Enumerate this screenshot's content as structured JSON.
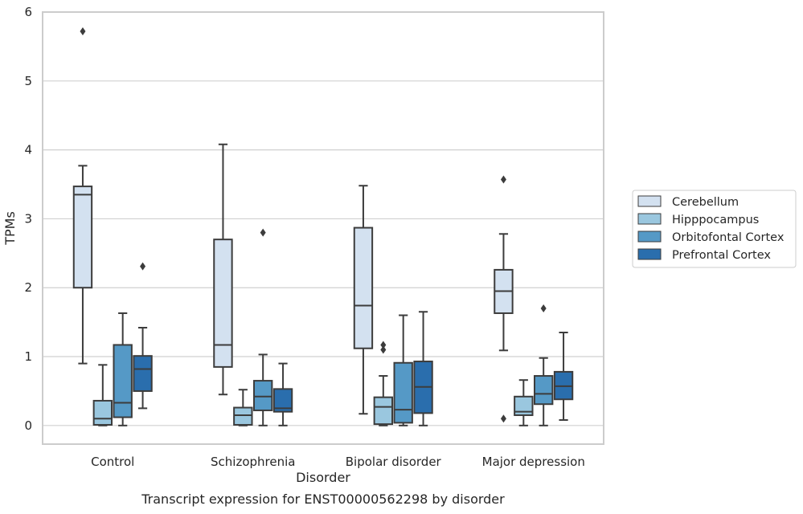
{
  "chart_data": {
    "type": "box",
    "xlabel": "Disorder",
    "ylabel": "TPMs",
    "caption": "Transcript expression for ENST00000562298 by disorder",
    "ylim": [
      -0.27,
      6.0
    ],
    "yticks": [
      0,
      1,
      2,
      3,
      4,
      5,
      6
    ],
    "grid": true,
    "legend_position": "center-right",
    "categories": [
      "Control",
      "Schizophrenia",
      "Bipolar disorder",
      "Major depression"
    ],
    "series": [
      {
        "name": "Cerebellum",
        "color": "#d3e1f0",
        "boxes": [
          {
            "whisker_low": 0.9,
            "q1": 2.0,
            "median": 3.35,
            "q3": 3.47,
            "whisker_high": 3.77,
            "outliers": [
              5.72
            ]
          },
          {
            "whisker_low": 0.45,
            "q1": 0.85,
            "median": 1.17,
            "q3": 2.7,
            "whisker_high": 4.08,
            "outliers": []
          },
          {
            "whisker_low": 0.17,
            "q1": 1.12,
            "median": 1.74,
            "q3": 2.87,
            "whisker_high": 3.48,
            "outliers": []
          },
          {
            "whisker_low": 1.09,
            "q1": 1.63,
            "median": 1.95,
            "q3": 2.26,
            "whisker_high": 2.78,
            "outliers": [
              0.1,
              3.57
            ]
          }
        ]
      },
      {
        "name": "Hipppocampus",
        "color": "#9ac7df",
        "boxes": [
          {
            "whisker_low": 0.0,
            "q1": 0.01,
            "median": 0.1,
            "q3": 0.36,
            "whisker_high": 0.88,
            "outliers": []
          },
          {
            "whisker_low": 0.0,
            "q1": 0.01,
            "median": 0.15,
            "q3": 0.26,
            "whisker_high": 0.52,
            "outliers": []
          },
          {
            "whisker_low": 0.0,
            "q1": 0.02,
            "median": 0.27,
            "q3": 0.41,
            "whisker_high": 0.72,
            "outliers": [
              1.1,
              1.17
            ]
          },
          {
            "whisker_low": 0.0,
            "q1": 0.15,
            "median": 0.2,
            "q3": 0.42,
            "whisker_high": 0.66,
            "outliers": []
          }
        ]
      },
      {
        "name": "Orbitofontal Cortex",
        "color": "#5599c6",
        "boxes": [
          {
            "whisker_low": 0.0,
            "q1": 0.12,
            "median": 0.33,
            "q3": 1.17,
            "whisker_high": 1.63,
            "outliers": []
          },
          {
            "whisker_low": 0.0,
            "q1": 0.22,
            "median": 0.42,
            "q3": 0.65,
            "whisker_high": 1.03,
            "outliers": [
              2.8
            ]
          },
          {
            "whisker_low": 0.0,
            "q1": 0.04,
            "median": 0.23,
            "q3": 0.91,
            "whisker_high": 1.6,
            "outliers": []
          },
          {
            "whisker_low": 0.0,
            "q1": 0.31,
            "median": 0.46,
            "q3": 0.72,
            "whisker_high": 0.98,
            "outliers": [
              1.7
            ]
          }
        ]
      },
      {
        "name": "Prefrontal Cortex",
        "color": "#2a6ead",
        "boxes": [
          {
            "whisker_low": 0.25,
            "q1": 0.5,
            "median": 0.82,
            "q3": 1.01,
            "whisker_high": 1.42,
            "outliers": [
              2.31
            ]
          },
          {
            "whisker_low": 0.0,
            "q1": 0.2,
            "median": 0.25,
            "q3": 0.53,
            "whisker_high": 0.9,
            "outliers": []
          },
          {
            "whisker_low": 0.0,
            "q1": 0.18,
            "median": 0.56,
            "q3": 0.93,
            "whisker_high": 1.65,
            "outliers": []
          },
          {
            "whisker_low": 0.08,
            "q1": 0.38,
            "median": 0.57,
            "q3": 0.78,
            "whisker_high": 1.35,
            "outliers": []
          }
        ]
      }
    ]
  }
}
